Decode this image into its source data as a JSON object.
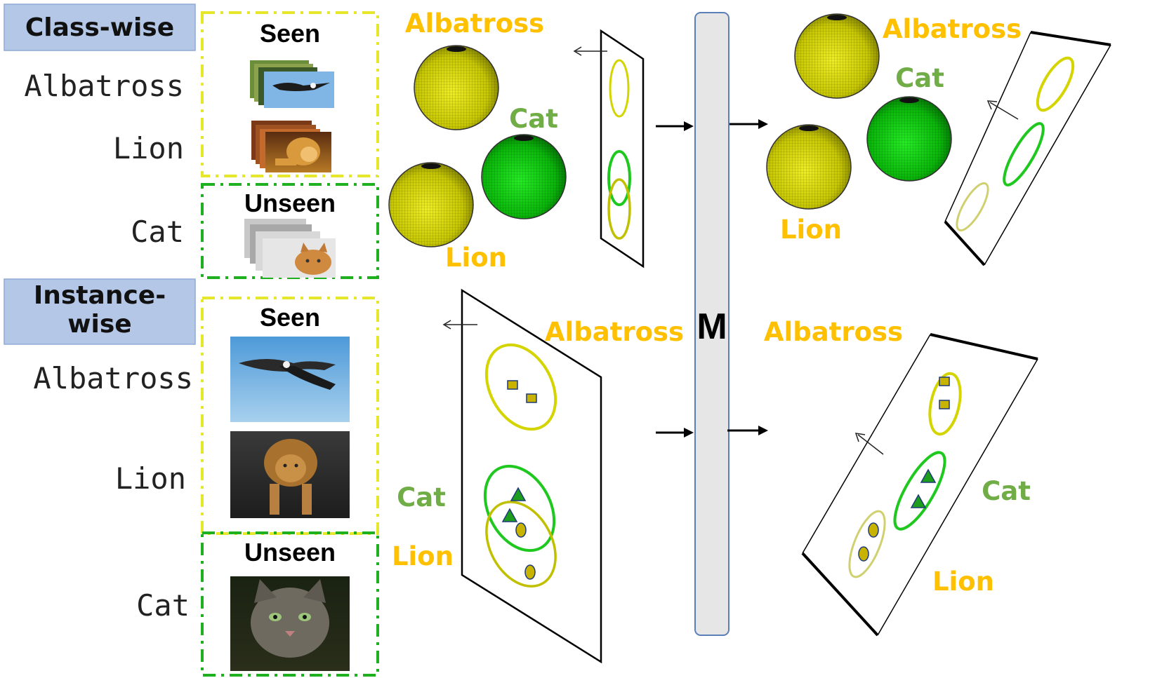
{
  "headers": {
    "class_wise": "Class-wise",
    "instance_wise_line1": "Instance-",
    "instance_wise_line2": "wise"
  },
  "rows": {
    "class_wise": [
      "Albatross",
      "Lion",
      "Cat"
    ],
    "instance_wise": [
      "Albatross",
      "Lion",
      "Cat"
    ]
  },
  "boxes": {
    "seen": "Seen",
    "unseen": "Unseen"
  },
  "classes": {
    "albatross": "Albatross",
    "lion": "Lion",
    "cat": "Cat"
  },
  "module_label": "M",
  "colors": {
    "seen_class": "#ffc000",
    "unseen_class": "#70ad47",
    "seen_box_border": "#e6e62a",
    "unseen_box_border": "#1fb01f",
    "header_fill": "#b4c7e7",
    "module_fill": "#e6e6e6",
    "sphere_yellow": "#e0e000",
    "sphere_green": "#10d010"
  }
}
